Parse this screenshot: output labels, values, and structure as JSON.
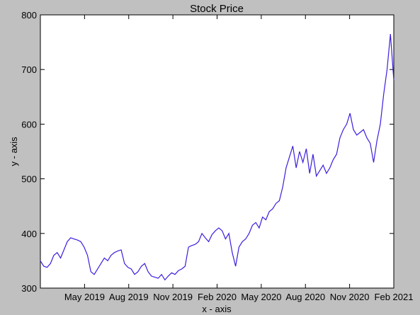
{
  "chart_data": {
    "type": "line",
    "title": "Stock Price",
    "xlabel": "x - axis",
    "ylabel": "y - axis",
    "color": "#3a1fdc",
    "xlim": [
      "2019-02",
      "2021-02"
    ],
    "xticks": [
      {
        "value": "2019-05",
        "label": "May 2019"
      },
      {
        "value": "2019-08",
        "label": "Aug 2019"
      },
      {
        "value": "2019-11",
        "label": "Nov 2019"
      },
      {
        "value": "2020-02",
        "label": "Feb 2020"
      },
      {
        "value": "2020-05",
        "label": "May 2020"
      },
      {
        "value": "2020-08",
        "label": "Aug 2020"
      },
      {
        "value": "2020-11",
        "label": "Nov 2020"
      },
      {
        "value": "2021-02",
        "label": "Feb 2021"
      }
    ],
    "ylim": [
      300,
      800
    ],
    "yticks": [
      300,
      400,
      500,
      600,
      700,
      800
    ],
    "values": [
      350,
      340,
      338,
      345,
      360,
      365,
      355,
      370,
      385,
      392,
      390,
      388,
      385,
      375,
      360,
      330,
      325,
      335,
      345,
      355,
      350,
      360,
      365,
      368,
      370,
      345,
      338,
      335,
      325,
      330,
      340,
      345,
      330,
      322,
      320,
      318,
      325,
      315,
      322,
      328,
      325,
      332,
      335,
      340,
      375,
      378,
      380,
      385,
      400,
      392,
      385,
      398,
      405,
      410,
      405,
      390,
      400,
      365,
      340,
      375,
      385,
      390,
      400,
      415,
      420,
      410,
      430,
      425,
      440,
      445,
      455,
      460,
      485,
      520,
      540,
      560,
      520,
      550,
      530,
      555,
      510,
      545,
      505,
      515,
      525,
      510,
      520,
      535,
      545,
      575,
      590,
      600,
      620,
      590,
      580,
      585,
      590,
      575,
      565,
      530,
      570,
      600,
      655,
      700,
      765,
      680
    ]
  }
}
